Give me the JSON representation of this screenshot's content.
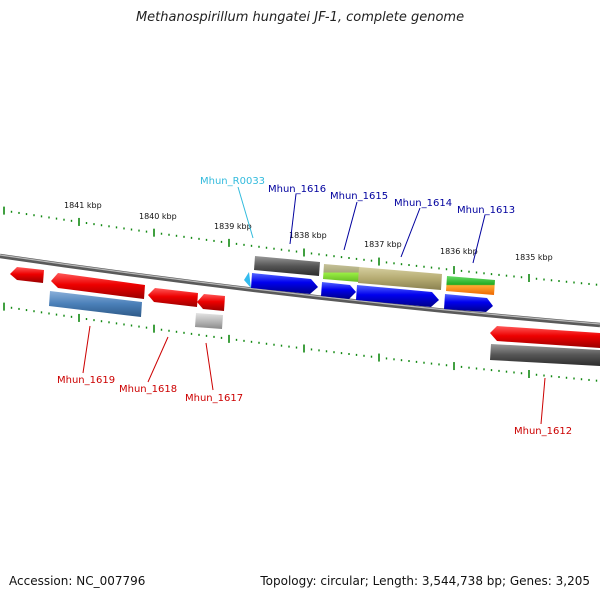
{
  "title": "Methanospirillum hungatei JF-1, complete genome",
  "footer": {
    "accession": "Accession: NC_007796",
    "summary": "Topology: circular; Length: 3,544,738 bp; Genes: 3,205"
  },
  "colors": {
    "label_top": "#00009e",
    "label_rna": "#33bbdd",
    "label_bottom": "#cc0000",
    "tick": "#118811",
    "backbone": "#808080"
  },
  "ticks": [
    {
      "label": "1841 kbp"
    },
    {
      "label": "1840 kbp"
    },
    {
      "label": "1839 kbp"
    },
    {
      "label": "1838 kbp"
    },
    {
      "label": "1837 kbp"
    },
    {
      "label": "1836 kbp"
    },
    {
      "label": "1835 kbp"
    }
  ],
  "genes_top": [
    {
      "label": "Mhun_R0033"
    },
    {
      "label": "Mhun_1616"
    },
    {
      "label": "Mhun_1615"
    },
    {
      "label": "Mhun_1614"
    },
    {
      "label": "Mhun_1613"
    }
  ],
  "genes_bottom": [
    {
      "label": "Mhun_1619"
    },
    {
      "label": "Mhun_1618"
    },
    {
      "label": "Mhun_1617"
    },
    {
      "label": "Mhun_1612"
    }
  ]
}
